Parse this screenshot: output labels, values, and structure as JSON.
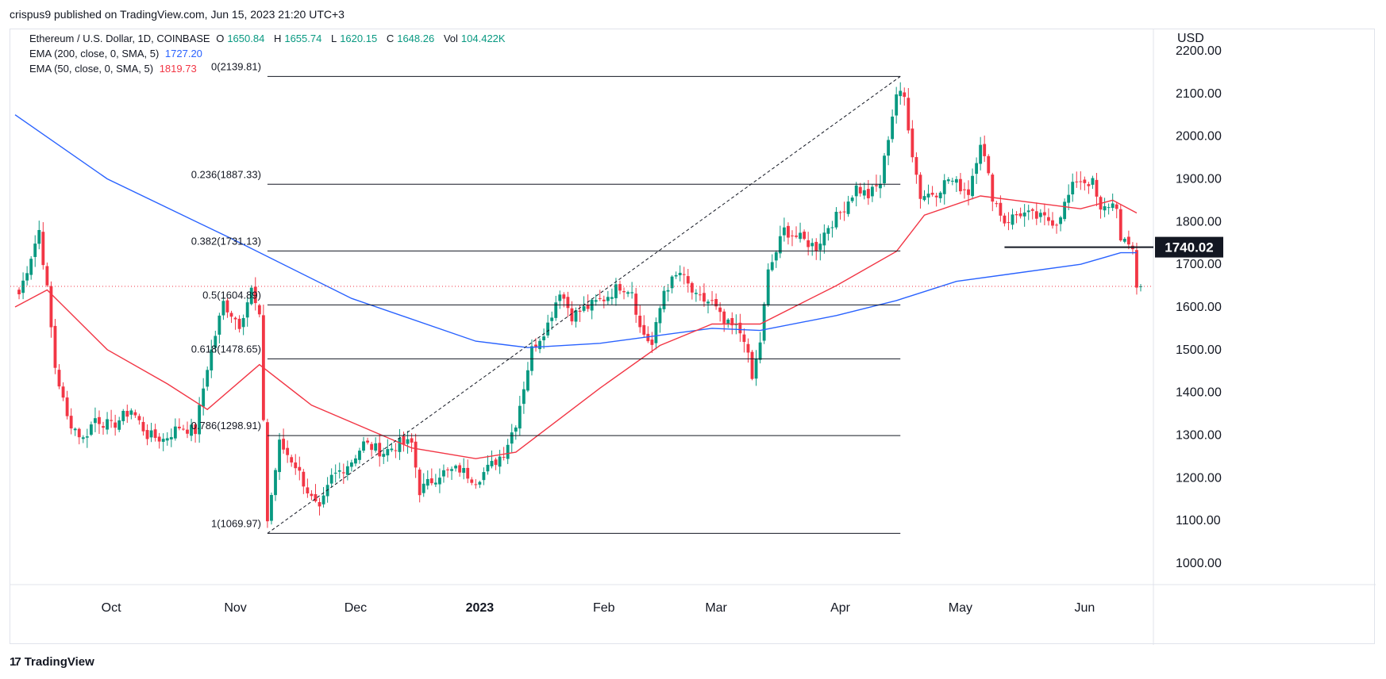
{
  "header": {
    "publisher_text": "crispus9 published on TradingView.com, Jun 15, 2023 21:20 UTC+3"
  },
  "legend": {
    "symbol": "Ethereum / U.S. Dollar, 1D, COINBASE",
    "o_label": "O",
    "o_value": "1650.84",
    "h_label": "H",
    "h_value": "1655.74",
    "l_label": "L",
    "l_value": "1620.15",
    "c_label": "C",
    "c_value": "1648.26",
    "vol_label": "Vol",
    "vol_value": "104.422K",
    "ema200_label": "EMA (200, close, 0, SMA, 5)",
    "ema200_value": "1727.20",
    "ema50_label": "EMA (50, close, 0, SMA, 5)",
    "ema50_value": "1819.73"
  },
  "footer": {
    "brand": "TradingView"
  },
  "colors": {
    "up": "#089981",
    "down": "#f23645",
    "ema200": "#2962ff",
    "ema50": "#f23645",
    "grid": "#e0e3eb"
  },
  "chart_data": {
    "type": "candlestick",
    "currency_label": "USD",
    "y_ticks": [
      "2200.00",
      "2100.00",
      "2000.00",
      "1900.00",
      "1800.00",
      "1700.00",
      "1600.00",
      "1500.00",
      "1400.00",
      "1300.00",
      "1200.00",
      "1100.00",
      "1000.00"
    ],
    "ylim": [
      950,
      2250
    ],
    "x_ticks": [
      {
        "label": "Oct",
        "date": "2022-10-01",
        "bold": false
      },
      {
        "label": "Nov",
        "date": "2022-11-01",
        "bold": false
      },
      {
        "label": "Dec",
        "date": "2022-12-01",
        "bold": false
      },
      {
        "label": "2023",
        "date": "2023-01-01",
        "bold": true
      },
      {
        "label": "Feb",
        "date": "2023-02-01",
        "bold": false
      },
      {
        "label": "Mar",
        "date": "2023-03-01",
        "bold": false
      },
      {
        "label": "Apr",
        "date": "2023-04-01",
        "bold": false
      },
      {
        "label": "May",
        "date": "2023-05-01",
        "bold": false
      },
      {
        "label": "Jun",
        "date": "2023-06-01",
        "bold": false
      }
    ],
    "price_anchors": [
      [
        "2022-09-08",
        1630
      ],
      [
        "2022-09-11",
        1720
      ],
      [
        "2022-09-13",
        1780
      ],
      [
        "2022-09-15",
        1640
      ],
      [
        "2022-09-17",
        1460
      ],
      [
        "2022-09-20",
        1340
      ],
      [
        "2022-09-24",
        1290
      ],
      [
        "2022-09-27",
        1340
      ],
      [
        "2022-10-01",
        1320
      ],
      [
        "2022-10-06",
        1360
      ],
      [
        "2022-10-10",
        1300
      ],
      [
        "2022-10-14",
        1290
      ],
      [
        "2022-10-18",
        1320
      ],
      [
        "2022-10-22",
        1310
      ],
      [
        "2022-10-25",
        1460
      ],
      [
        "2022-10-29",
        1610
      ],
      [
        "2022-11-02",
        1560
      ],
      [
        "2022-11-05",
        1640
      ],
      [
        "2022-11-07",
        1570
      ],
      [
        "2022-11-08",
        1340
      ],
      [
        "2022-11-09",
        1100
      ],
      [
        "2022-11-12",
        1280
      ],
      [
        "2022-11-16",
        1230
      ],
      [
        "2022-11-20",
        1150
      ],
      [
        "2022-11-22",
        1120
      ],
      [
        "2022-11-25",
        1200
      ],
      [
        "2022-11-30",
        1240
      ],
      [
        "2022-12-03",
        1280
      ],
      [
        "2022-12-08",
        1260
      ],
      [
        "2022-12-12",
        1280
      ],
      [
        "2022-12-15",
        1280
      ],
      [
        "2022-12-17",
        1170
      ],
      [
        "2022-12-22",
        1210
      ],
      [
        "2022-12-27",
        1220
      ],
      [
        "2022-12-31",
        1195
      ],
      [
        "2023-01-04",
        1230
      ],
      [
        "2023-01-07",
        1260
      ],
      [
        "2023-01-10",
        1330
      ],
      [
        "2023-01-14",
        1500
      ],
      [
        "2023-01-18",
        1560
      ],
      [
        "2023-01-21",
        1640
      ],
      [
        "2023-01-24",
        1580
      ],
      [
        "2023-01-28",
        1600
      ],
      [
        "2023-02-01",
        1620
      ],
      [
        "2023-02-05",
        1650
      ],
      [
        "2023-02-08",
        1640
      ],
      [
        "2023-02-10",
        1550
      ],
      [
        "2023-02-13",
        1510
      ],
      [
        "2023-02-16",
        1640
      ],
      [
        "2023-02-20",
        1680
      ],
      [
        "2023-02-24",
        1620
      ],
      [
        "2023-02-28",
        1610
      ],
      [
        "2023-03-03",
        1560
      ],
      [
        "2023-03-06",
        1550
      ],
      [
        "2023-03-08",
        1530
      ],
      [
        "2023-03-10",
        1430
      ],
      [
        "2023-03-12",
        1520
      ],
      [
        "2023-03-14",
        1680
      ],
      [
        "2023-03-18",
        1780
      ],
      [
        "2023-03-22",
        1760
      ],
      [
        "2023-03-26",
        1740
      ],
      [
        "2023-03-29",
        1790
      ],
      [
        "2023-04-01",
        1820
      ],
      [
        "2023-04-05",
        1880
      ],
      [
        "2023-04-08",
        1860
      ],
      [
        "2023-04-11",
        1890
      ],
      [
        "2023-04-13",
        2000
      ],
      [
        "2023-04-15",
        2100
      ],
      [
        "2023-04-17",
        2090
      ],
      [
        "2023-04-19",
        1960
      ],
      [
        "2023-04-21",
        1860
      ],
      [
        "2023-04-25",
        1870
      ],
      [
        "2023-04-28",
        1900
      ],
      [
        "2023-05-03",
        1870
      ],
      [
        "2023-05-06",
        1990
      ],
      [
        "2023-05-09",
        1860
      ],
      [
        "2023-05-12",
        1800
      ],
      [
        "2023-05-16",
        1820
      ],
      [
        "2023-05-20",
        1810
      ],
      [
        "2023-05-25",
        1800
      ],
      [
        "2023-05-28",
        1860
      ],
      [
        "2023-05-30",
        1900
      ],
      [
        "2023-06-03",
        1890
      ],
      [
        "2023-06-05",
        1820
      ],
      [
        "2023-06-07",
        1840
      ],
      [
        "2023-06-09",
        1840
      ],
      [
        "2023-06-10",
        1750
      ],
      [
        "2023-06-13",
        1740
      ],
      [
        "2023-06-14",
        1650
      ],
      [
        "2023-06-15",
        1648
      ]
    ],
    "ema200_points": [
      [
        "2022-09-07",
        2050
      ],
      [
        "2022-09-30",
        1900
      ],
      [
        "2022-10-31",
        1760
      ],
      [
        "2022-11-30",
        1620
      ],
      [
        "2022-12-31",
        1520
      ],
      [
        "2023-01-13",
        1505
      ],
      [
        "2023-01-31",
        1515
      ],
      [
        "2023-02-28",
        1550
      ],
      [
        "2023-03-12",
        1545
      ],
      [
        "2023-03-31",
        1580
      ],
      [
        "2023-04-15",
        1615
      ],
      [
        "2023-04-30",
        1660
      ],
      [
        "2023-05-31",
        1700
      ],
      [
        "2023-06-10",
        1727
      ],
      [
        "2023-06-14",
        1727
      ]
    ],
    "ema50_points": [
      [
        "2022-09-07",
        1600
      ],
      [
        "2022-09-15",
        1640
      ],
      [
        "2022-09-30",
        1500
      ],
      [
        "2022-10-15",
        1420
      ],
      [
        "2022-10-25",
        1360
      ],
      [
        "2022-11-07",
        1465
      ],
      [
        "2022-11-20",
        1370
      ],
      [
        "2022-12-15",
        1270
      ],
      [
        "2022-12-31",
        1245
      ],
      [
        "2023-01-10",
        1260
      ],
      [
        "2023-01-31",
        1410
      ],
      [
        "2023-02-15",
        1510
      ],
      [
        "2023-02-28",
        1560
      ],
      [
        "2023-03-12",
        1560
      ],
      [
        "2023-03-31",
        1650
      ],
      [
        "2023-04-15",
        1730
      ],
      [
        "2023-04-22",
        1815
      ],
      [
        "2023-05-06",
        1860
      ],
      [
        "2023-05-31",
        1830
      ],
      [
        "2023-06-08",
        1850
      ],
      [
        "2023-06-14",
        1820
      ]
    ],
    "fibonacci": {
      "start_date": "2022-11-09",
      "end_date": "2023-04-16",
      "levels": [
        {
          "label": "0(2139.81)",
          "price": 2139.81
        },
        {
          "label": "0.236(1887.33)",
          "price": 1887.33
        },
        {
          "label": "0.382(1731.13)",
          "price": 1731.13
        },
        {
          "label": "0.5(1604.89)",
          "price": 1604.89
        },
        {
          "label": "0.618(1478.65)",
          "price": 1478.65
        },
        {
          "label": "0.786(1298.91)",
          "price": 1298.91
        },
        {
          "label": "1(1069.97)",
          "price": 1069.97
        }
      ],
      "trend_from": {
        "date": "2022-11-09",
        "price": 1069.97
      },
      "trend_to": {
        "date": "2023-04-16",
        "price": 2139.81
      }
    },
    "support_line": {
      "price": 1740.02,
      "from": "2023-05-12",
      "to": "2023-06-15",
      "label": "1740.02"
    },
    "last_price": 1648.26,
    "date_range": [
      "2022-09-07",
      "2023-06-15"
    ]
  }
}
